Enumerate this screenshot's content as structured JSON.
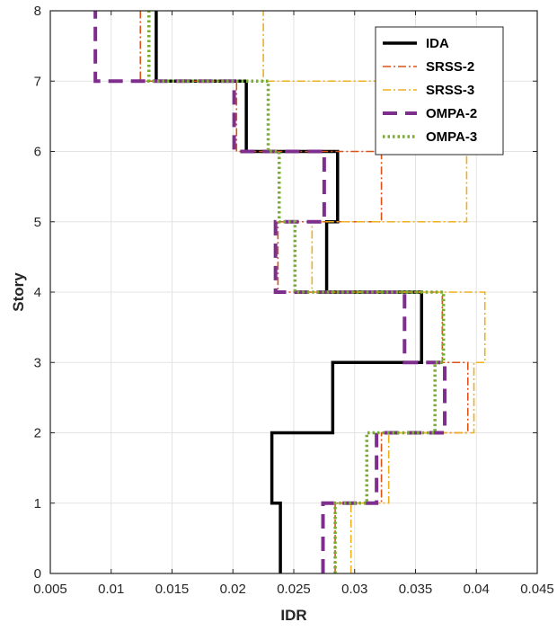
{
  "chart_data": {
    "type": "line",
    "xlabel": "IDR",
    "ylabel": "Story",
    "xlim": [
      0.005,
      0.045
    ],
    "ylim": [
      0,
      8
    ],
    "grid": true,
    "legend_position": "top-right",
    "xticks": [
      "0.005",
      "0.01",
      "0.015",
      "0.02",
      "0.025",
      "0.03",
      "0.035",
      "0.04",
      "0.045"
    ],
    "yticks": [
      "0",
      "1",
      "2",
      "3",
      "4",
      "5",
      "6",
      "7",
      "8"
    ],
    "series": [
      {
        "name": "IDA",
        "color": "#000000",
        "style": "solid",
        "values": [
          0.0239,
          0.0232,
          0.0282,
          0.0355,
          0.0277,
          0.0286,
          0.0211,
          0.0137
        ]
      },
      {
        "name": "SRSS-2",
        "color": "#d95319",
        "style": "dashdot",
        "values": [
          0.0284,
          0.0322,
          0.0393,
          0.0372,
          0.0237,
          0.0322,
          0.0203,
          0.0124
        ]
      },
      {
        "name": "SRSS-3",
        "color": "#edb120",
        "style": "dashdot",
        "values": [
          0.0297,
          0.0328,
          0.0398,
          0.0407,
          0.0265,
          0.0392,
          0.0392,
          0.0225
        ]
      },
      {
        "name": "OMPA-2",
        "color": "#7e2f8e",
        "style": "dashed",
        "values": [
          0.0274,
          0.0318,
          0.0374,
          0.0341,
          0.0235,
          0.0275,
          0.0201,
          0.0087
        ]
      },
      {
        "name": "OMPA-3",
        "color": "#77ac30",
        "style": "dotted",
        "values": [
          0.0284,
          0.031,
          0.0366,
          0.0373,
          0.0251,
          0.0238,
          0.0229,
          0.0131
        ]
      }
    ]
  }
}
